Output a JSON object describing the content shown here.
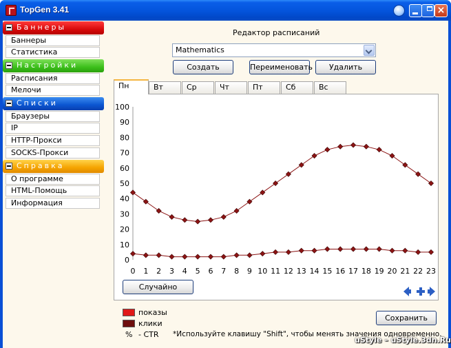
{
  "window": {
    "title": "TopGen 3.41"
  },
  "sidebar": {
    "sections": [
      {
        "title": "Баннеры",
        "color": "#d90b0b",
        "items": [
          "Баннеры",
          "Статистика"
        ]
      },
      {
        "title": "Настройки",
        "color": "#3cbf1b",
        "items": [
          "Расписания",
          "Мелочи"
        ]
      },
      {
        "title": "Списки",
        "color": "#0b55d0",
        "items": [
          "Браузеры",
          "IP",
          "HTTP-Прокси",
          "SOCKS-Прокси"
        ]
      },
      {
        "title": "Справка",
        "color": "#f5a300",
        "items": [
          "О программе",
          "HTML-Помощь",
          "Информация"
        ]
      }
    ]
  },
  "editor": {
    "title": "Редактор расписаний",
    "selected": "Mathematics",
    "buttons": {
      "create": "Создать",
      "rename": "Переименовать",
      "delete": "Удалить"
    },
    "tabs": [
      "Пн",
      "Вт",
      "Ср",
      "Чт",
      "Пт",
      "Сб",
      "Вс"
    ],
    "active_tab": "Пн",
    "random_button": "Случайно",
    "save_button": "Сохранить"
  },
  "legend": {
    "impressions": "показы",
    "impressions_color": "#e01919",
    "clicks": "клики",
    "clicks_color": "#6e0e0e",
    "ctr_symbol": "%",
    "ctr_label": "- CTR",
    "note": "*Используйте клавишу \"Shift\", чтобы менять значения одновременно."
  },
  "watermark": "uStyle – uStyle.3dn.Ru",
  "chart_data": {
    "type": "line",
    "x": [
      0,
      1,
      2,
      3,
      4,
      5,
      6,
      7,
      8,
      9,
      10,
      11,
      12,
      13,
      14,
      15,
      16,
      17,
      18,
      19,
      20,
      21,
      22,
      23
    ],
    "ylim": [
      0,
      100
    ],
    "yticks": [
      0,
      10,
      20,
      30,
      40,
      50,
      60,
      70,
      80,
      90,
      100
    ],
    "grid": false,
    "series": [
      {
        "name": "показы",
        "color": "#8a1010",
        "values": [
          44,
          38,
          32,
          28,
          26,
          25,
          26,
          28,
          32,
          38,
          44,
          50,
          56,
          62,
          68,
          72,
          74,
          75,
          74,
          72,
          68,
          62,
          56,
          50
        ]
      },
      {
        "name": "клики",
        "color": "#8a1010",
        "values": [
          4,
          3,
          3,
          2,
          2,
          2,
          2,
          2,
          3,
          3,
          4,
          5,
          5,
          6,
          6,
          7,
          7,
          7,
          7,
          7,
          6,
          6,
          5,
          5
        ]
      }
    ]
  }
}
